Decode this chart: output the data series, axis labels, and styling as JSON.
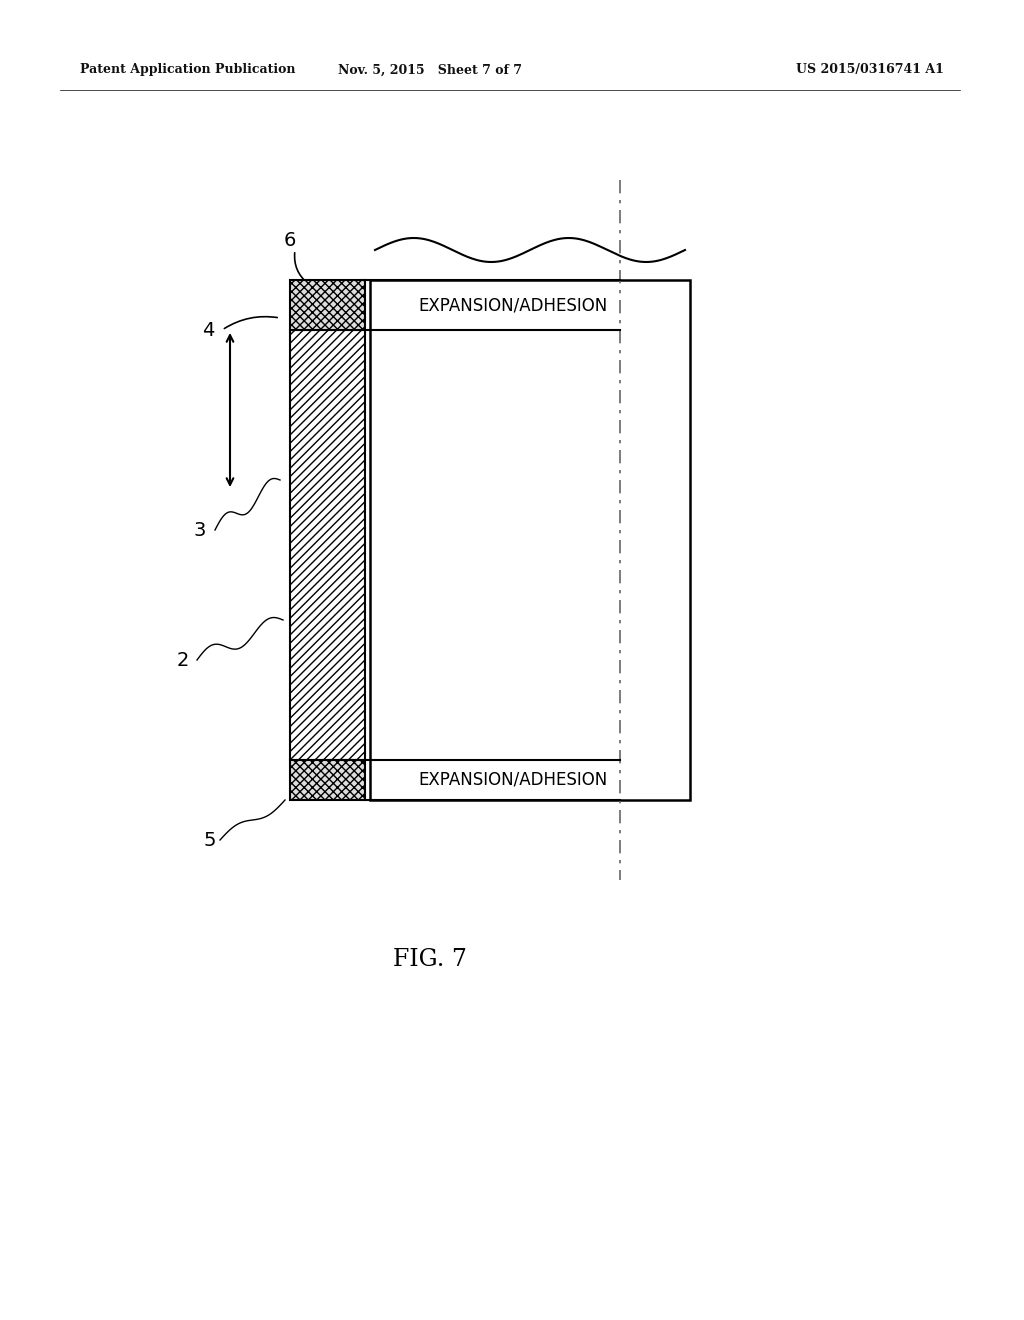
{
  "bg_color": "#ffffff",
  "header_left": "Patent Application Publication",
  "header_mid": "Nov. 5, 2015   Sheet 7 of 7",
  "header_right": "US 2015/0316741 A1",
  "fig_caption": "FIG. 7",
  "expansion_top_text": "EXPANSION/ADHESION",
  "expansion_bot_text": "EXPANSION/ADHESION",
  "line_color": "#000000",
  "dash_color": "#777777"
}
